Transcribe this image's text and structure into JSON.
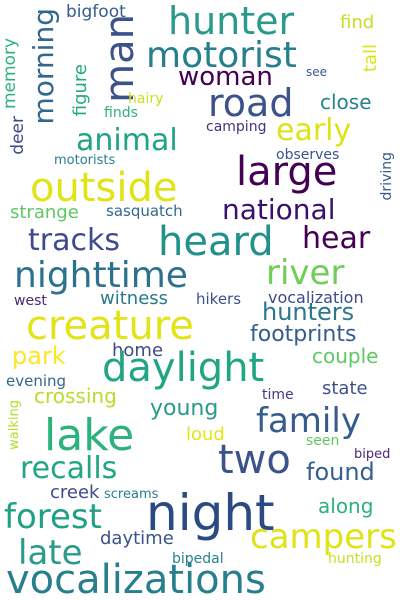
{
  "words": [
    {
      "text": "hunter",
      "color": "#2a9a8a"
    },
    {
      "text": "bigfoot",
      "color": "#365c8d"
    },
    {
      "text": "find",
      "color": "#c8e020"
    },
    {
      "text": "man",
      "color": "#3b528b"
    },
    {
      "text": "motorist",
      "color": "#277f8e"
    },
    {
      "text": "memory",
      "color": "#2db27d"
    },
    {
      "text": "morning",
      "color": "#31688e"
    },
    {
      "text": "woman",
      "color": "#440154"
    },
    {
      "text": "see",
      "color": "#375a8c"
    },
    {
      "text": "tall",
      "color": "#dde318"
    },
    {
      "text": "figure",
      "color": "#22a884"
    },
    {
      "text": "road",
      "color": "#3b528b"
    },
    {
      "text": "hairy",
      "color": "#cae11f"
    },
    {
      "text": "finds",
      "color": "#2db27d"
    },
    {
      "text": "close",
      "color": "#26828e"
    },
    {
      "text": "animal",
      "color": "#20a386"
    },
    {
      "text": "deer",
      "color": "#3e4a89"
    },
    {
      "text": "early",
      "color": "#dde318"
    },
    {
      "text": "camping",
      "color": "#46327e"
    },
    {
      "text": "observes",
      "color": "#3b528b"
    },
    {
      "text": "motorists",
      "color": "#277f8e"
    },
    {
      "text": "large",
      "color": "#440154"
    },
    {
      "text": "driving",
      "color": "#365c8d"
    },
    {
      "text": "outside",
      "color": "#e0e318"
    },
    {
      "text": "national",
      "color": "#3b0f70"
    },
    {
      "text": "strange",
      "color": "#5ec962"
    },
    {
      "text": "sasquatch",
      "color": "#31688e"
    },
    {
      "text": "tracks",
      "color": "#3e4a89"
    },
    {
      "text": "heard",
      "color": "#21918c"
    },
    {
      "text": "hear",
      "color": "#440154"
    },
    {
      "text": "nighttime",
      "color": "#2c728e"
    },
    {
      "text": "river",
      "color": "#6ece58"
    },
    {
      "text": "witness",
      "color": "#2a788e"
    },
    {
      "text": "hikers",
      "color": "#3b528b"
    },
    {
      "text": "west",
      "color": "#482878"
    },
    {
      "text": "vocalization",
      "color": "#3e4989"
    },
    {
      "text": "hunters",
      "color": "#2a788e"
    },
    {
      "text": "creature",
      "color": "#e2e418"
    },
    {
      "text": "footprints",
      "color": "#365c8d"
    },
    {
      "text": "park",
      "color": "#fde725"
    },
    {
      "text": "couple",
      "color": "#5ec962"
    },
    {
      "text": "home",
      "color": "#3e4a89"
    },
    {
      "text": "daylight",
      "color": "#21a585"
    },
    {
      "text": "evening",
      "color": "#31688e"
    },
    {
      "text": "state",
      "color": "#3b528b"
    },
    {
      "text": "crossing",
      "color": "#b5de2b"
    },
    {
      "text": "time",
      "color": "#443983"
    },
    {
      "text": "young",
      "color": "#2a9a8a"
    },
    {
      "text": "lake",
      "color": "#2db27d"
    },
    {
      "text": "family",
      "color": "#365c8d"
    },
    {
      "text": "walking",
      "color": "#b5de2b"
    },
    {
      "text": "loud",
      "color": "#e2e418"
    },
    {
      "text": "seen",
      "color": "#5ec962"
    },
    {
      "text": "two",
      "color": "#3b528b"
    },
    {
      "text": "biped",
      "color": "#482878"
    },
    {
      "text": "recalls",
      "color": "#21a585"
    },
    {
      "text": "found",
      "color": "#355f8d"
    },
    {
      "text": "creek",
      "color": "#3e4a89"
    },
    {
      "text": "screams",
      "color": "#277f8e"
    },
    {
      "text": "forest",
      "color": "#1fa187"
    },
    {
      "text": "along",
      "color": "#2db27d"
    },
    {
      "text": "night",
      "color": "#2c4a82"
    },
    {
      "text": "daytime",
      "color": "#3b528b"
    },
    {
      "text": "campers",
      "color": "#e0e318"
    },
    {
      "text": "late",
      "color": "#2a9a8a"
    },
    {
      "text": "bipedal",
      "color": "#26828e"
    },
    {
      "text": "hunting",
      "color": "#c8e020"
    },
    {
      "text": "vocalizations",
      "color": "#277f8e"
    }
  ]
}
